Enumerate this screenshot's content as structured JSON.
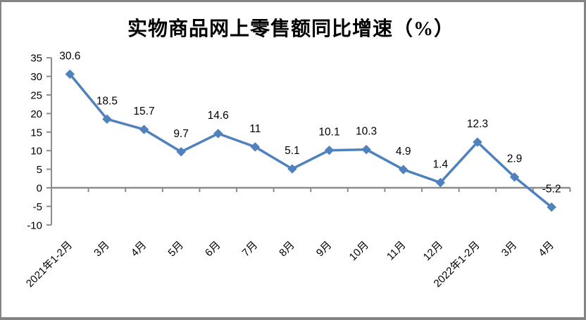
{
  "chart_data": {
    "type": "line",
    "title": "实物商品网上零售额同比增速（%）",
    "categories": [
      "2021年1-2月",
      "3月",
      "4月",
      "5月",
      "6月",
      "7月",
      "8月",
      "9月",
      "10月",
      "11月",
      "12月",
      "2022年1-2月",
      "3月",
      "4月"
    ],
    "series": [
      {
        "name": "实物商品网上零售额同比增速(%)",
        "values": [
          30.6,
          18.5,
          15.7,
          9.7,
          14.6,
          11,
          5.1,
          10.1,
          10.3,
          4.9,
          1.4,
          12.3,
          2.9,
          -5.2
        ]
      }
    ],
    "data_labels": [
      "30.6",
      "18.5",
      "15.7",
      "9.7",
      "14.6",
      "11",
      "5.1",
      "10.1",
      "10.3",
      "4.9",
      "1.4",
      "12.3",
      "2.9",
      "-5.2"
    ],
    "yticks": [
      35,
      30,
      25,
      20,
      15,
      10,
      5,
      0,
      -5,
      -10
    ],
    "ylim": [
      -10,
      35
    ],
    "ytick_interval": 5,
    "xlabel": "",
    "ylabel": "",
    "x_label_rotation": 45,
    "legend": "none",
    "grid": "off",
    "marker": "diamond",
    "line_color": "#4F81BD",
    "marker_color": "#4F81BD",
    "axis_color": "#8C8C8C",
    "text_color": "#000000",
    "frame_border_color": "#848484",
    "background_color": "#FFFFFF"
  }
}
